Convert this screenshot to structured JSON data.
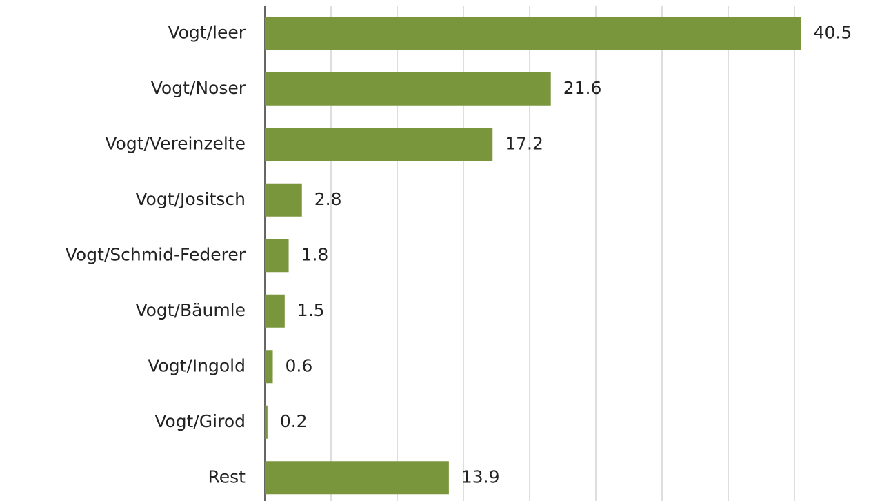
{
  "chart_data": {
    "type": "bar",
    "orientation": "horizontal",
    "categories": [
      "Vogt/leer",
      "Vogt/Noser",
      "Vogt/Vereinzelte",
      "Vogt/Jositsch",
      "Vogt/Schmid-Federer",
      "Vogt/Bäumle",
      "Vogt/Ingold",
      "Vogt/Girod",
      "Rest"
    ],
    "values": [
      40.5,
      21.6,
      17.2,
      2.8,
      1.8,
      1.5,
      0.6,
      0.2,
      13.9
    ],
    "color": "#7a963c",
    "xlim": [
      0,
      45
    ],
    "xticks": [
      0,
      5,
      10,
      15,
      20,
      25,
      30,
      35,
      40
    ],
    "grid": true
  }
}
